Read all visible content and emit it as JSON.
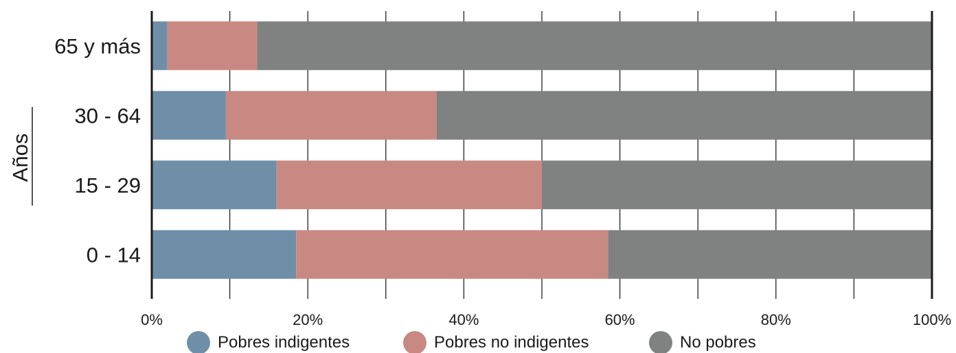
{
  "chart_data": {
    "type": "bar",
    "orientation": "horizontal",
    "stacked": true,
    "title": "",
    "xlabel": "",
    "ylabel": "Años",
    "categories": [
      "65 y más",
      "30 - 64",
      "15 - 29",
      "0 - 14"
    ],
    "series": [
      {
        "name": "Pobres indigentes",
        "values": [
          2,
          9.5,
          16,
          18.5
        ],
        "color": "#6f8fa8"
      },
      {
        "name": "Pobres no indigentes",
        "values": [
          11.5,
          27,
          34,
          40
        ],
        "color": "#c98983"
      },
      {
        "name": "No pobres",
        "values": [
          86.5,
          63.5,
          50,
          41.5
        ],
        "color": "#7f8281"
      }
    ],
    "xlim": [
      0,
      100
    ],
    "x_unit": "%",
    "xticks": [
      "0%",
      "20%",
      "40%",
      "60%",
      "80%",
      "100%"
    ],
    "grid": "vertical",
    "legend_position": "bottom"
  }
}
